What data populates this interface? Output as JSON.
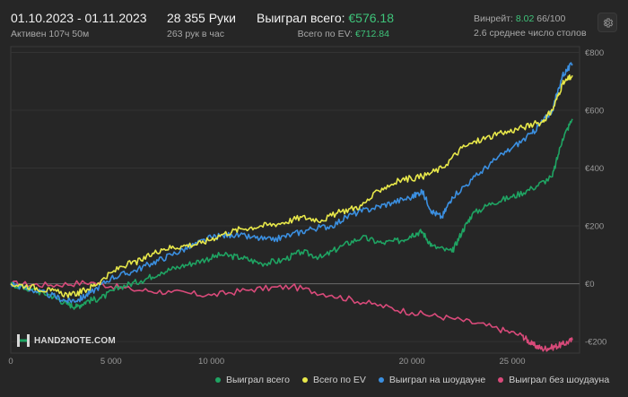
{
  "header": {
    "date_range": "01.10.2023 - 01.11.2023",
    "active_time": "Активен 107ч 50м",
    "hands": "28 355 Руки",
    "hands_per_hour": "263 рук в час",
    "won_label": "Выиграл всего:",
    "won_value": "€576.18",
    "ev_label": "Всего по EV:",
    "ev_value": "€712.84",
    "winrate_label": "Винрейт:",
    "winrate_value": "8.02",
    "winrate_scale": "66/100",
    "tables_avg": "2.6 среднее число столов"
  },
  "logo_text": "HAND2NOTE.COM",
  "colors": {
    "won": "#1fa463",
    "ev": "#e8e84a",
    "showdown": "#3b8fe0",
    "non_showdown": "#d94a7a"
  },
  "chart_data": {
    "type": "line",
    "x_ticks": [
      {
        "value": 0,
        "label": "0"
      },
      {
        "value": 5000,
        "label": "5 000"
      },
      {
        "value": 10000,
        "label": "10 000"
      },
      {
        "value": 20000,
        "label": "20 000"
      },
      {
        "value": 25000,
        "label": "25 000"
      }
    ],
    "y_ticks": [
      {
        "value": -200,
        "label": "-€200"
      },
      {
        "value": 0,
        "label": "€0"
      },
      {
        "value": 200,
        "label": "€200"
      },
      {
        "value": 400,
        "label": "€400"
      },
      {
        "value": 600,
        "label": "€600"
      },
      {
        "value": 800,
        "label": "€800"
      }
    ],
    "xlim": [
      0,
      28355
    ],
    "ylim": [
      -240,
      820
    ],
    "legend_position": "bottom",
    "series": [
      {
        "name": "Выиграл всего",
        "color_key": "won",
        "x": [
          0,
          1000,
          2000,
          2800,
          3300,
          3800,
          4500,
          5500,
          6500,
          7500,
          8500,
          9500,
          10500,
          11500,
          12500,
          13500,
          14500,
          15500,
          16500,
          17500,
          18500,
          19500,
          20000,
          20500,
          21000,
          22000,
          22500,
          23000,
          24000,
          25000,
          26000,
          27000,
          27500,
          28000
        ],
        "y": [
          0,
          -20,
          -40,
          -70,
          -80,
          -60,
          -50,
          -10,
          10,
          40,
          60,
          80,
          100,
          90,
          70,
          80,
          110,
          90,
          130,
          160,
          140,
          150,
          170,
          180,
          130,
          110,
          180,
          240,
          280,
          300,
          330,
          370,
          500,
          570
        ]
      },
      {
        "name": "Всего по EV",
        "color_key": "ev",
        "x": [
          0,
          1000,
          2000,
          3000,
          3800,
          4500,
          5500,
          6500,
          7500,
          8500,
          9500,
          10500,
          11500,
          12500,
          13500,
          14500,
          15500,
          16500,
          17500,
          18500,
          19500,
          20500,
          21500,
          22500,
          23500,
          24500,
          25500,
          26500,
          27000,
          27500,
          28000
        ],
        "y": [
          0,
          -10,
          -25,
          -40,
          -20,
          10,
          60,
          80,
          120,
          130,
          140,
          170,
          190,
          200,
          210,
          230,
          220,
          250,
          270,
          330,
          360,
          370,
          400,
          470,
          500,
          520,
          540,
          560,
          600,
          690,
          720
        ]
      },
      {
        "name": "Выиграл на шоудауне",
        "color_key": "showdown",
        "x": [
          0,
          1000,
          2000,
          2800,
          3400,
          4000,
          5000,
          6000,
          7000,
          8000,
          9000,
          10000,
          11000,
          12000,
          13000,
          14000,
          15000,
          16000,
          17000,
          18000,
          19000,
          20000,
          20500,
          21000,
          21500,
          22000,
          23000,
          24000,
          25000,
          26000,
          26500,
          27000,
          27500,
          28000
        ],
        "y": [
          0,
          -20,
          -40,
          -60,
          -55,
          -30,
          20,
          40,
          70,
          100,
          130,
          160,
          170,
          160,
          150,
          170,
          190,
          200,
          240,
          260,
          280,
          300,
          320,
          250,
          230,
          300,
          360,
          420,
          470,
          520,
          560,
          600,
          720,
          760
        ]
      },
      {
        "name": "Выиграл без шоудауна",
        "color_key": "non_showdown",
        "x": [
          0,
          2000,
          4000,
          6000,
          8000,
          10000,
          12000,
          14000,
          16000,
          18000,
          20000,
          22000,
          24000,
          25500,
          26000,
          26500,
          27000,
          27500,
          28000
        ],
        "y": [
          0,
          -5,
          5,
          -20,
          -30,
          -40,
          -20,
          -10,
          -40,
          -70,
          -100,
          -120,
          -150,
          -180,
          -210,
          -225,
          -220,
          -210,
          -195
        ]
      }
    ]
  }
}
